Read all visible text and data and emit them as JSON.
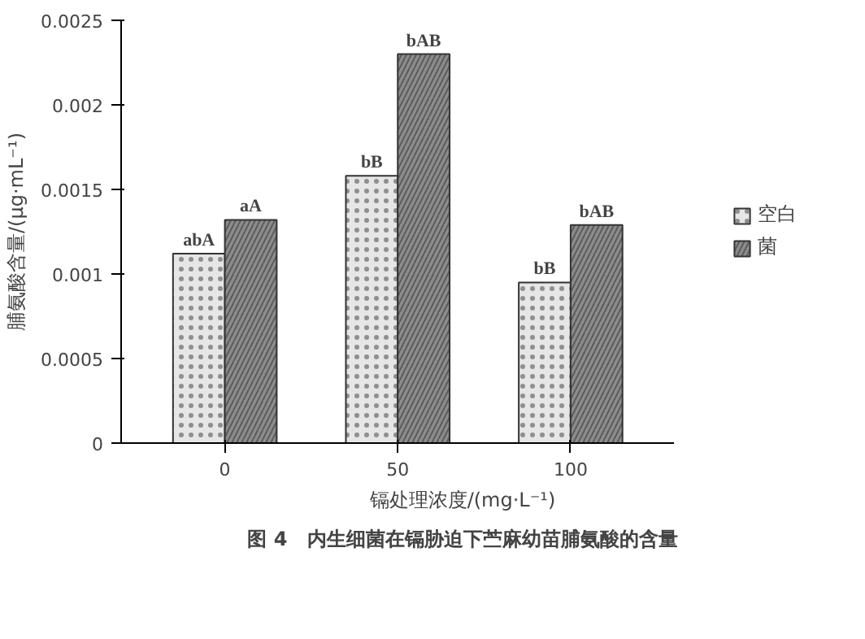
{
  "chart_data": {
    "type": "bar",
    "title": "图 4　内生细菌在镉胁迫下苎麻幼苗脯氨酸的含量",
    "categories": [
      "0",
      "50",
      "100"
    ],
    "xlabel": "镉处理浓度/(mg·L⁻¹)",
    "ylabel": "脯氨酸含量/(μg·mL⁻¹)",
    "series": [
      {
        "name": "空白",
        "color": "#e6e6e6",
        "values": [
          0.00112,
          0.00158,
          0.00095
        ],
        "value_labels": [
          "abA",
          "bB",
          "bB"
        ]
      },
      {
        "name": "菌",
        "color": "#8c8c8c",
        "values": [
          0.00132,
          0.0023,
          0.00129
        ],
        "value_labels": [
          "aA",
          "bAB",
          "bAB"
        ]
      }
    ],
    "ylim": [
      0,
      0.0025
    ],
    "yticks": [
      0,
      0.0005,
      0.001,
      0.0015,
      0.002,
      0.0025
    ],
    "grid": false,
    "legend": "right"
  }
}
